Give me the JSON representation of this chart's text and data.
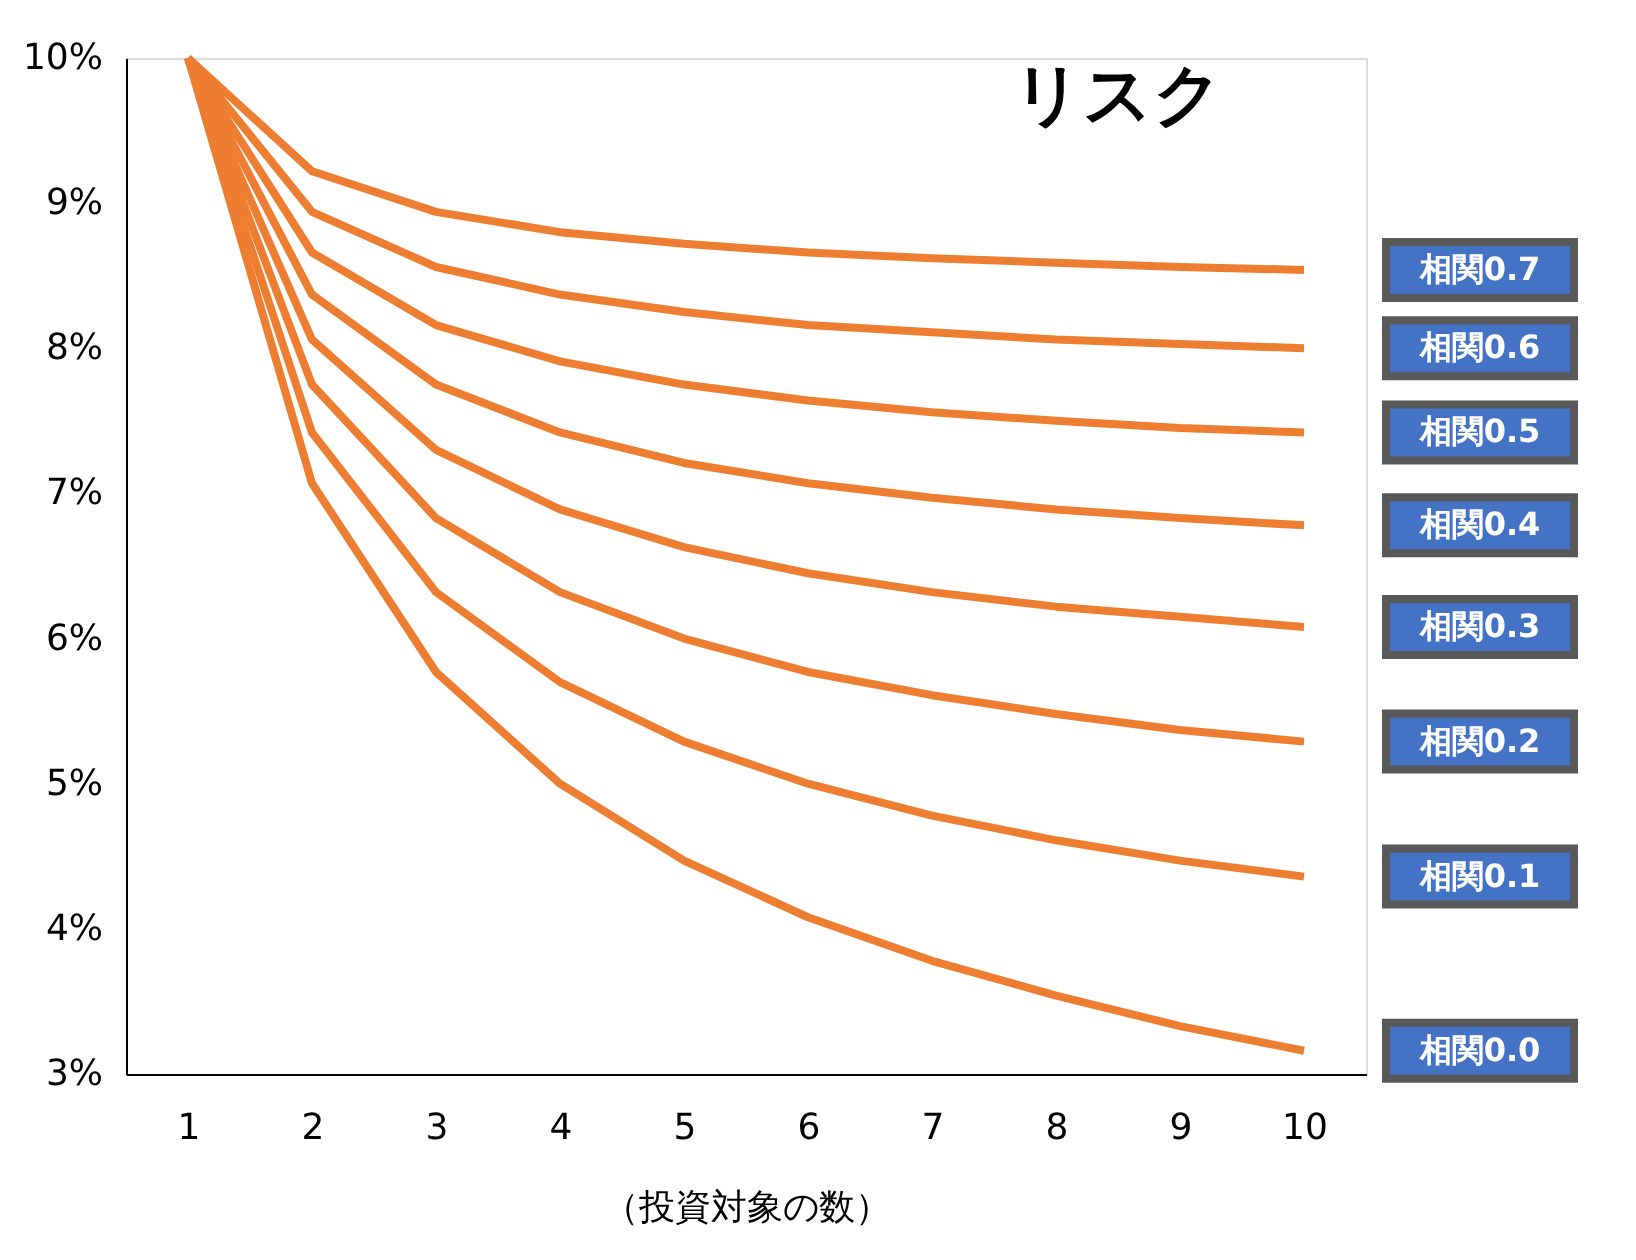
{
  "chart_data": {
    "type": "line",
    "xlabel": "（投資対象の数）",
    "x": [
      1,
      2,
      3,
      4,
      5,
      6,
      7,
      8,
      9,
      10
    ],
    "series": [
      {
        "name": "相関0.7",
        "color": "#ed7d31",
        "values": [
          10,
          9.22,
          8.94,
          8.8,
          8.72,
          8.66,
          8.62,
          8.59,
          8.56,
          8.54
        ]
      },
      {
        "name": "相関0.6",
        "color": "#ed7d31",
        "values": [
          10,
          8.94,
          8.56,
          8.37,
          8.25,
          8.16,
          8.11,
          8.06,
          8.03,
          8.0
        ]
      },
      {
        "name": "相関0.5",
        "color": "#ed7d31",
        "values": [
          10,
          8.66,
          8.16,
          7.91,
          7.75,
          7.64,
          7.56,
          7.5,
          7.45,
          7.42
        ]
      },
      {
        "name": "相関0.4",
        "color": "#ed7d31",
        "values": [
          10,
          8.37,
          7.75,
          7.42,
          7.21,
          7.07,
          6.97,
          6.89,
          6.83,
          6.78
        ]
      },
      {
        "name": "相関0.3",
        "color": "#ed7d31",
        "values": [
          10,
          8.06,
          7.3,
          6.89,
          6.63,
          6.45,
          6.32,
          6.22,
          6.15,
          6.08
        ]
      },
      {
        "name": "相関0.2",
        "color": "#ed7d31",
        "values": [
          10,
          7.75,
          6.83,
          6.32,
          6.0,
          5.77,
          5.61,
          5.48,
          5.37,
          5.29
        ]
      },
      {
        "name": "相関0.1",
        "color": "#ed7d31",
        "values": [
          10,
          7.42,
          6.32,
          5.7,
          5.29,
          5.0,
          4.78,
          4.61,
          4.47,
          4.36
        ]
      },
      {
        "name": "相関0.0",
        "color": "#ed7d31",
        "values": [
          10,
          7.07,
          5.77,
          5.0,
          4.47,
          4.08,
          3.78,
          3.54,
          3.33,
          3.16
        ]
      }
    ],
    "xlim": [
      0.5,
      10.5
    ],
    "xticks": [
      1,
      2,
      3,
      4,
      5,
      6,
      7,
      8,
      9,
      10
    ],
    "ylim": [
      3,
      10
    ],
    "yticks": [
      {
        "value": 3,
        "label": "3%"
      },
      {
        "value": 4,
        "label": "4%"
      },
      {
        "value": 5,
        "label": "5%"
      },
      {
        "value": 6,
        "label": "6%"
      },
      {
        "value": 7,
        "label": "7%"
      },
      {
        "value": 8,
        "label": "8%"
      },
      {
        "value": 9,
        "label": "9%"
      },
      {
        "value": 10,
        "label": "10%"
      }
    ],
    "annotations": [
      "リスク"
    ],
    "grid": false,
    "legend": false,
    "marker": "none",
    "line_style": "solid"
  }
}
